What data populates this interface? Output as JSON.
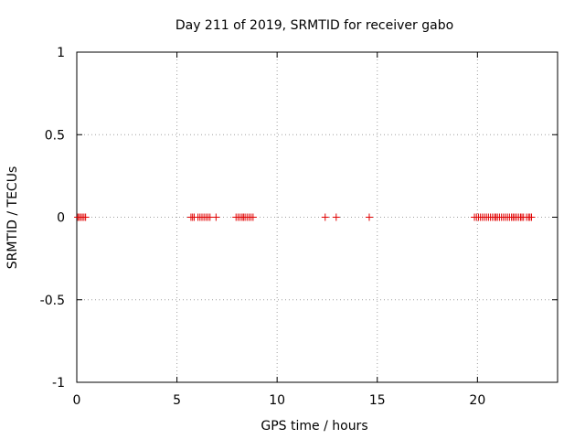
{
  "chart_data": {
    "type": "scatter",
    "title": "Day 211 of 2019, SRMTID for receiver gabo",
    "xlabel": "GPS time / hours",
    "ylabel": "SRMTID / TECUs",
    "xlim": [
      0,
      24
    ],
    "ylim": [
      -1,
      1
    ],
    "xticks": [
      0,
      5,
      10,
      15,
      20
    ],
    "xtick_labels": [
      "0",
      "5",
      "10",
      "15",
      "20"
    ],
    "yticks": [
      -1,
      -0.5,
      0,
      0.5,
      1
    ],
    "ytick_labels": [
      "-1",
      "-0.5",
      "0",
      "0.5",
      "1"
    ],
    "grid": true,
    "marker": "+",
    "color": "#e00000",
    "series": [
      {
        "name": "gabo",
        "x": [
          0.05,
          0.12,
          0.2,
          0.28,
          0.36,
          0.44,
          5.7,
          5.78,
          5.86,
          6.05,
          6.15,
          6.25,
          6.35,
          6.45,
          6.55,
          6.65,
          6.95,
          7.95,
          8.05,
          8.15,
          8.25,
          8.32,
          8.4,
          8.5,
          8.6,
          8.7,
          8.8,
          12.4,
          12.95,
          14.6,
          19.85,
          19.95,
          20.05,
          20.15,
          20.25,
          20.35,
          20.45,
          20.55,
          20.65,
          20.75,
          20.85,
          20.92,
          21.0,
          21.1,
          21.2,
          21.3,
          21.4,
          21.5,
          21.6,
          21.7,
          21.78,
          21.86,
          21.95,
          22.05,
          22.15,
          22.22,
          22.3,
          22.45,
          22.55,
          22.62,
          22.7
        ],
        "y": [
          0,
          0,
          0,
          0,
          0,
          0,
          0,
          0,
          0,
          0,
          0,
          0,
          0,
          0,
          0,
          0,
          0,
          0,
          0,
          0,
          0,
          0,
          0,
          0,
          0,
          0,
          0,
          0,
          0,
          0,
          0,
          0,
          0,
          0,
          0,
          0,
          0,
          0,
          0,
          0,
          0,
          0,
          0,
          0,
          0,
          0,
          0,
          0,
          0,
          0,
          0,
          0,
          0,
          0,
          0,
          0,
          0,
          0,
          0,
          0,
          0
        ]
      }
    ]
  }
}
